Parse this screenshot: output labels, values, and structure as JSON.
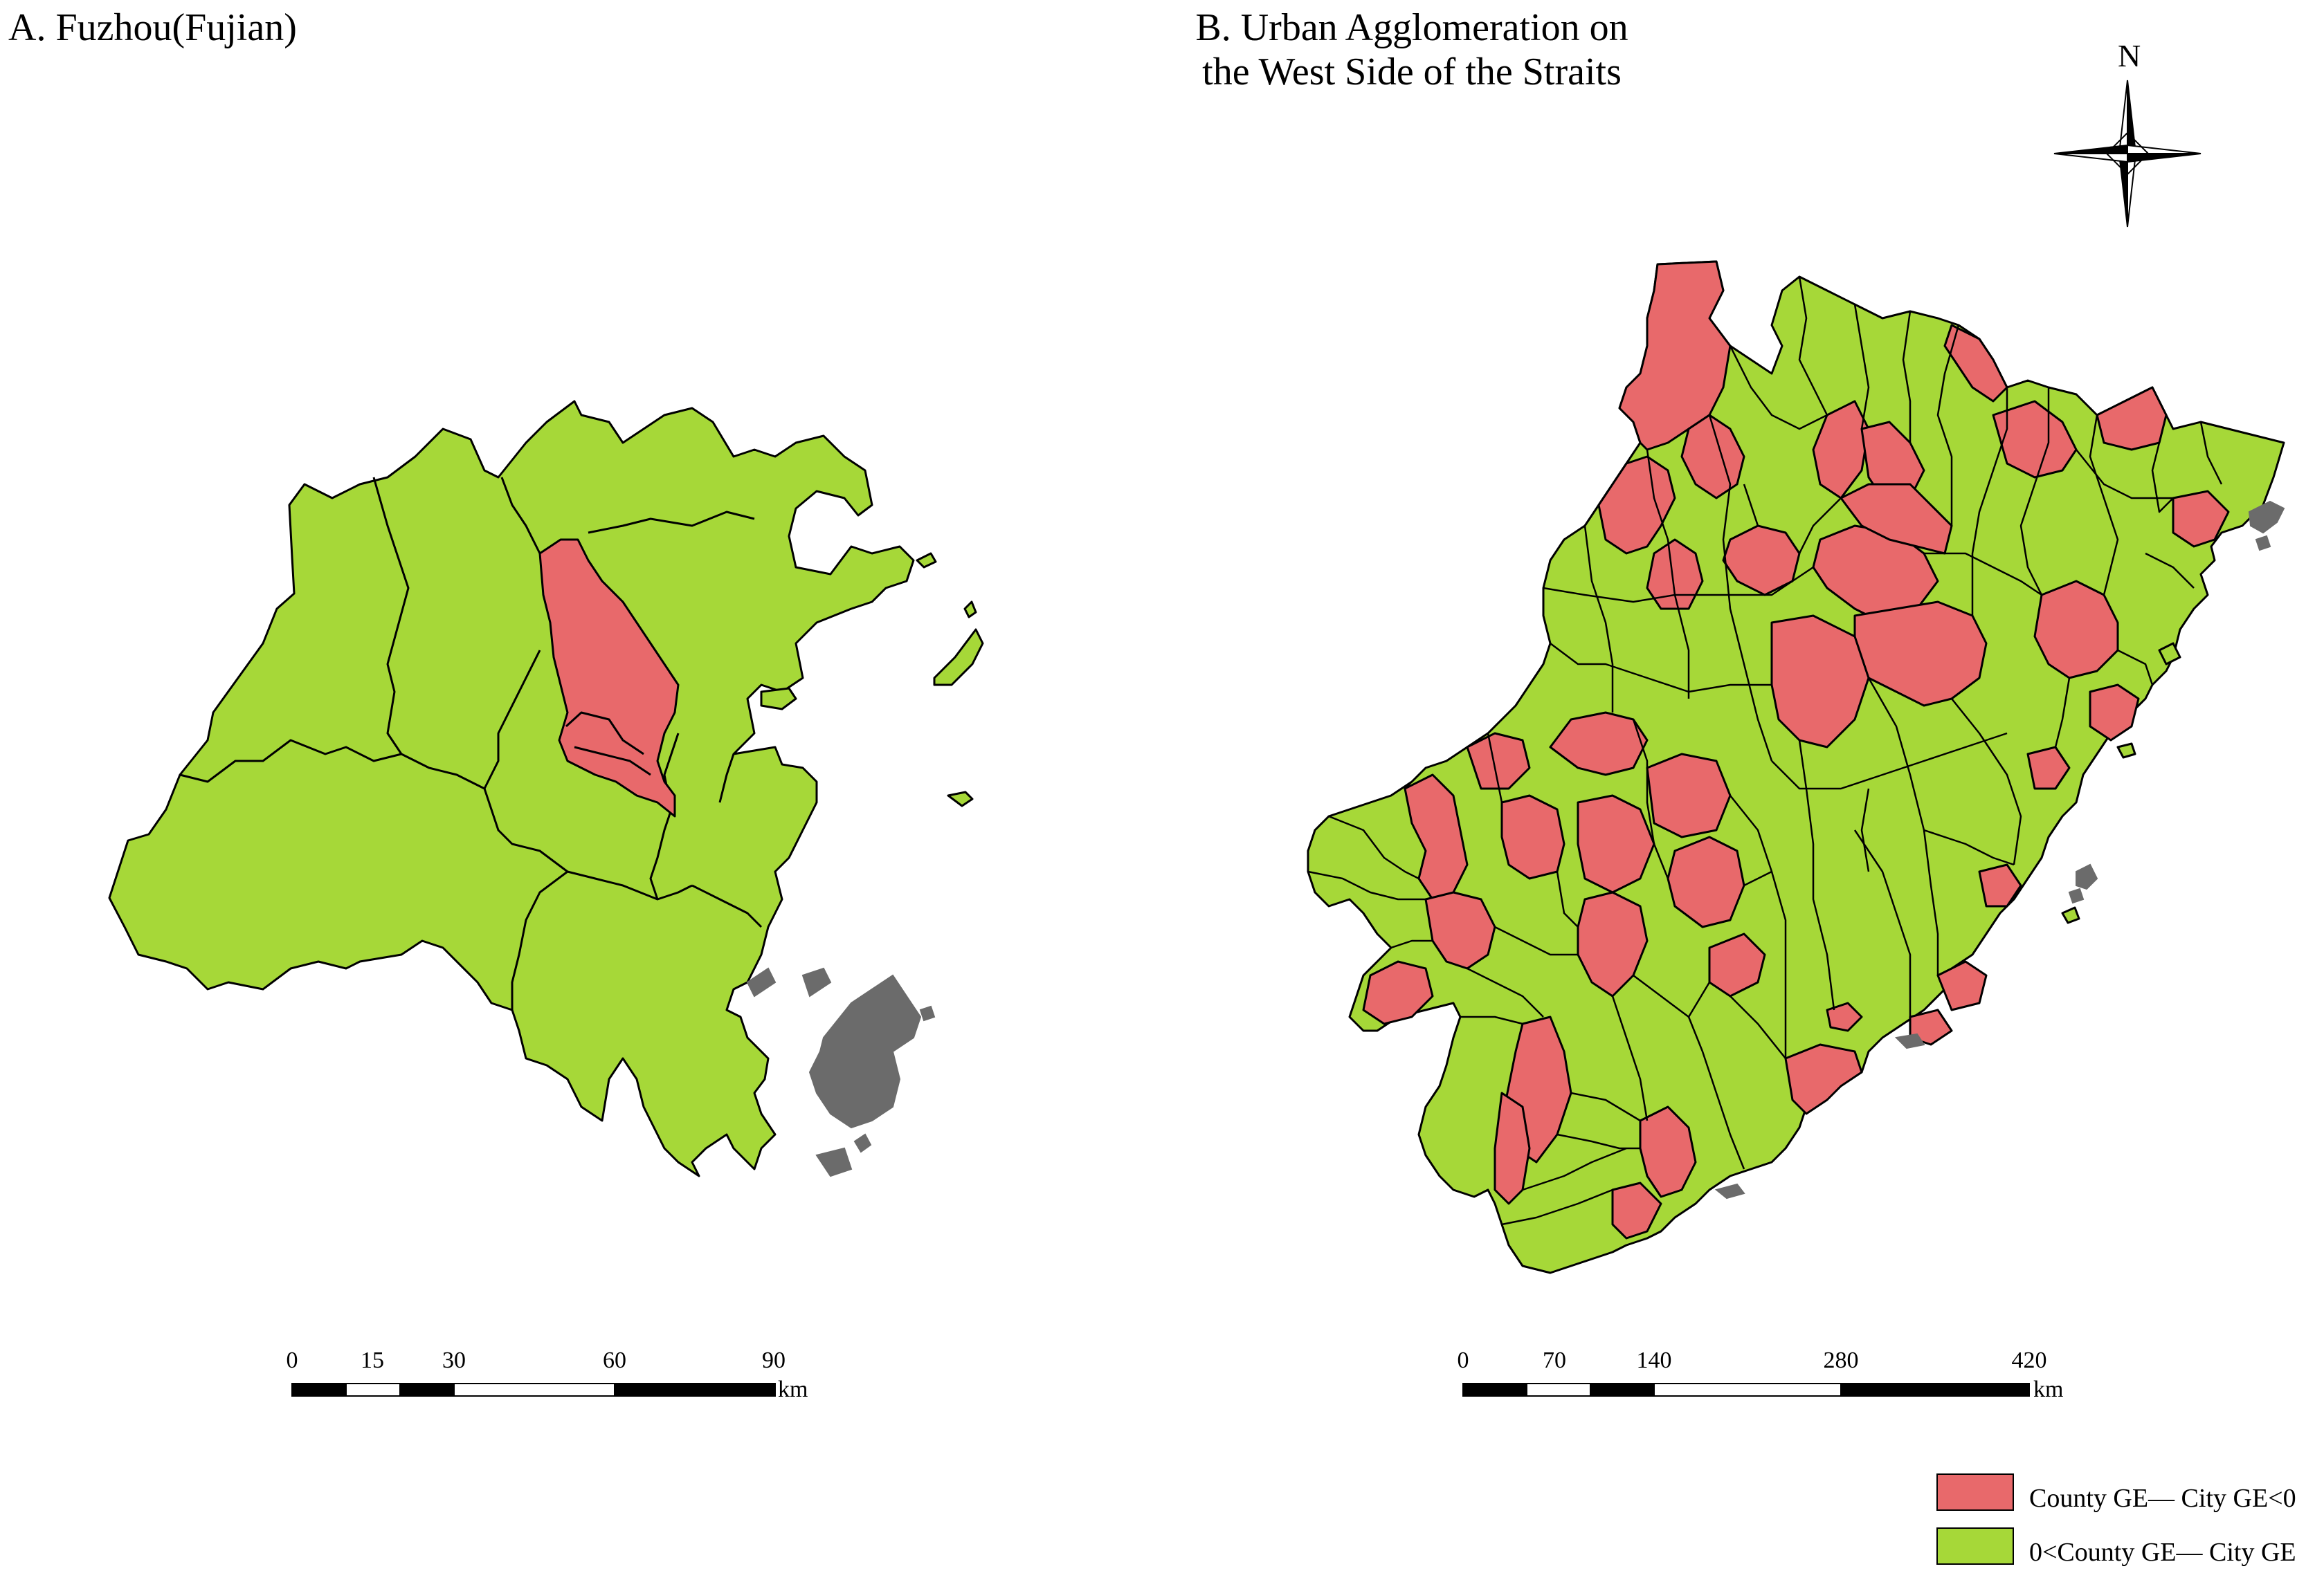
{
  "panel_a": {
    "title": "A. Fuzhou(Fujian)"
  },
  "panel_b": {
    "title_line1": "B. Urban Agglomeration on",
    "title_line2": "the West Side of the Straits"
  },
  "north_arrow": {
    "label": "N",
    "icon": "north-arrow-icon"
  },
  "scalebar_a": {
    "ticks": [
      "0",
      "15",
      "30",
      "60",
      "90"
    ],
    "unit": "km"
  },
  "scalebar_b": {
    "ticks": [
      "0",
      "70",
      "140",
      "280",
      "420"
    ],
    "unit": "km"
  },
  "legend": {
    "items": [
      {
        "label": "County GE— City GE<0",
        "color": "#E8696B"
      },
      {
        "label": "0<County GE— City GE",
        "color": "#A6D838"
      }
    ]
  },
  "colors": {
    "negative": "#E8696B",
    "positive": "#A6D838",
    "other_land": "#6B6B6B",
    "border": "#000000"
  }
}
